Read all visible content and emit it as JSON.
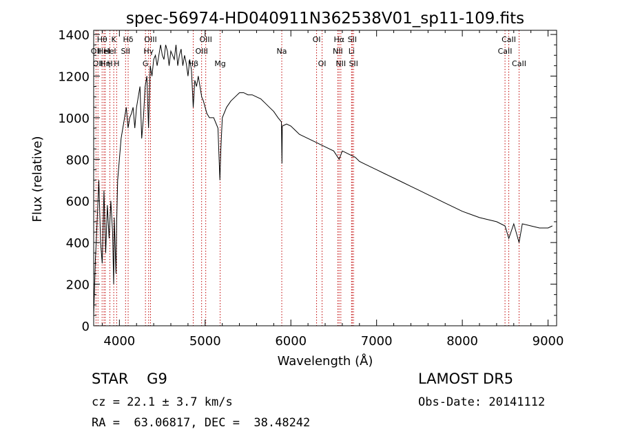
{
  "chart_data": {
    "type": "line",
    "title": "spec-56974-HD040911N362538V01_sp11-109.fits",
    "xlabel": "Wavelength (Å)",
    "ylabel": "Flux (relative)",
    "xlim": [
      3700,
      9100
    ],
    "ylim": [
      0,
      1420
    ],
    "grid": false,
    "x_ticks": [
      "4000",
      "5000",
      "6000",
      "7000",
      "8000",
      "9000"
    ],
    "y_ticks": [
      "0",
      "200",
      "400",
      "600",
      "800",
      "1000",
      "1200",
      "1400"
    ],
    "series": [
      {
        "x": [
          3700,
          3720,
          3740,
          3760,
          3780,
          3800,
          3820,
          3840,
          3860,
          3880,
          3900,
          3920,
          3933,
          3940,
          3960,
          3968,
          3980,
          4000,
          4020,
          4040,
          4060,
          4080,
          4101,
          4120,
          4140,
          4160,
          4180,
          4200,
          4220,
          4240,
          4260,
          4280,
          4300,
          4320,
          4340,
          4360,
          4380,
          4400,
          4420,
          4440,
          4460,
          4480,
          4500,
          4520,
          4540,
          4560,
          4580,
          4600,
          4620,
          4640,
          4660,
          4680,
          4700,
          4720,
          4740,
          4760,
          4780,
          4800,
          4820,
          4840,
          4861,
          4880,
          4900,
          4920,
          4940,
          4960,
          4980,
          5000,
          5020,
          5050,
          5100,
          5150,
          5172,
          5183,
          5200,
          5250,
          5300,
          5350,
          5400,
          5450,
          5500,
          5550,
          5600,
          5650,
          5700,
          5750,
          5800,
          5850,
          5890,
          5896,
          5900,
          5950,
          6000,
          6050,
          6100,
          6150,
          6200,
          6250,
          6300,
          6350,
          6400,
          6450,
          6500,
          6563,
          6600,
          6650,
          6700,
          6750,
          6800,
          6850,
          6900,
          6950,
          7000,
          7100,
          7200,
          7300,
          7400,
          7500,
          7600,
          7700,
          7800,
          7900,
          8000,
          8100,
          8200,
          8300,
          8400,
          8498,
          8542,
          8600,
          8662,
          8700,
          8800,
          8900,
          9000,
          9050
        ],
        "y": [
          50,
          320,
          500,
          700,
          400,
          300,
          650,
          350,
          580,
          420,
          600,
          450,
          200,
          520,
          250,
          500,
          700,
          800,
          900,
          950,
          1000,
          1050,
          950,
          1000,
          1020,
          1050,
          950,
          1050,
          1100,
          1150,
          900,
          1000,
          1150,
          1200,
          950,
          1250,
          1200,
          1280,
          1300,
          1250,
          1300,
          1350,
          1300,
          1280,
          1350,
          1320,
          1250,
          1320,
          1300,
          1280,
          1350,
          1250,
          1300,
          1330,
          1250,
          1300,
          1260,
          1200,
          1280,
          1230,
          1050,
          1180,
          1150,
          1200,
          1150,
          1100,
          1080,
          1050,
          1020,
          1000,
          1000,
          950,
          700,
          850,
          1000,
          1050,
          1080,
          1100,
          1120,
          1120,
          1110,
          1110,
          1100,
          1090,
          1070,
          1050,
          1030,
          1000,
          980,
          780,
          960,
          970,
          960,
          940,
          920,
          910,
          900,
          890,
          880,
          870,
          860,
          850,
          840,
          800,
          840,
          830,
          820,
          810,
          790,
          780,
          770,
          760,
          750,
          730,
          710,
          690,
          670,
          650,
          630,
          610,
          590,
          570,
          550,
          535,
          520,
          510,
          500,
          480,
          420,
          490,
          400,
          490,
          480,
          470,
          470,
          480
        ]
      }
    ],
    "line_markers": [
      {
        "x": 3727,
        "label": "OII",
        "row": 2
      },
      {
        "x": 3750,
        "label": "OII",
        "row": 3
      },
      {
        "x": 3798,
        "label": "Hθ",
        "row": 1
      },
      {
        "x": 3820,
        "label": "HeI",
        "row": 2
      },
      {
        "x": 3835,
        "label": "Hη",
        "row": 3
      },
      {
        "x": 3889,
        "label": "HeI",
        "row": 2
      },
      {
        "x": 3889,
        "label": "H",
        "row": 3
      },
      {
        "x": 3934,
        "label": "K",
        "row": 1
      },
      {
        "x": 3968,
        "label": "H",
        "row": 3
      },
      {
        "x": 4072,
        "label": "SII",
        "row": 2
      },
      {
        "x": 4102,
        "label": "Hδ",
        "row": 1
      },
      {
        "x": 4304,
        "label": "G",
        "row": 3
      },
      {
        "x": 4341,
        "label": "Hγ",
        "row": 2
      },
      {
        "x": 4363,
        "label": "OIII",
        "row": 1
      },
      {
        "x": 4861,
        "label": "Hβ",
        "row": 3
      },
      {
        "x": 4959,
        "label": "OIII",
        "row": 2
      },
      {
        "x": 5007,
        "label": "OIII",
        "row": 1
      },
      {
        "x": 5175,
        "label": "Mg",
        "row": 3
      },
      {
        "x": 5894,
        "label": "Na",
        "row": 2
      },
      {
        "x": 6300,
        "label": "OI",
        "row": 1
      },
      {
        "x": 6364,
        "label": "OI",
        "row": 3
      },
      {
        "x": 6548,
        "label": "NII",
        "row": 2
      },
      {
        "x": 6563,
        "label": "Hα",
        "row": 1
      },
      {
        "x": 6583,
        "label": "NII",
        "row": 3
      },
      {
        "x": 6708,
        "label": "Li",
        "row": 2
      },
      {
        "x": 6716,
        "label": "SII",
        "row": 1
      },
      {
        "x": 6731,
        "label": "SII",
        "row": 3
      },
      {
        "x": 8498,
        "label": "CaII",
        "row": 2
      },
      {
        "x": 8542,
        "label": "CaII",
        "row": 1
      },
      {
        "x": 8662,
        "label": "CaII",
        "row": 3
      }
    ]
  },
  "info": {
    "object_class": "STAR    G9",
    "survey": "LAMOST DR5",
    "cz": "cz = 22.1 ± 3.7 km/s",
    "obs_date": "Obs-Date: 20141112",
    "radec": "RA =  63.06817, DEC =  38.48242"
  }
}
